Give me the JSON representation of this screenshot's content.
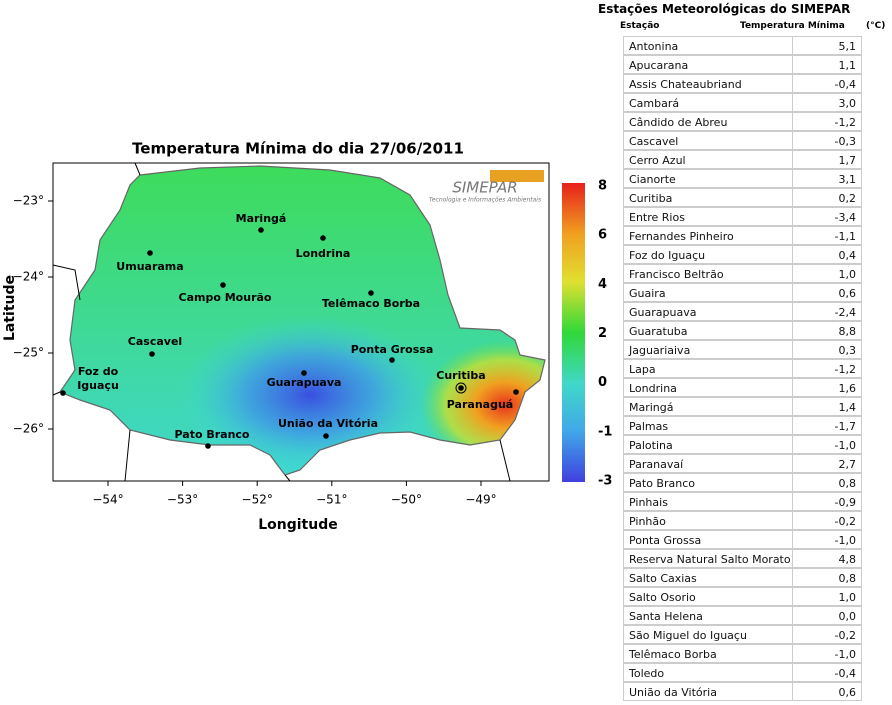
{
  "map": {
    "title": "Temperatura Mínima  do dia 27/06/2011",
    "xlabel": "Longitude",
    "ylabel": "Latitude",
    "xticks": [
      {
        "value": -54,
        "label": "−54°"
      },
      {
        "value": -53,
        "label": "−53°"
      },
      {
        "value": -52,
        "label": "−52°"
      },
      {
        "value": -51,
        "label": "−51°"
      },
      {
        "value": -50,
        "label": "−50°"
      },
      {
        "value": -49,
        "label": "−49°"
      }
    ],
    "yticks": [
      {
        "value": -23,
        "label": "−23°"
      },
      {
        "value": -24,
        "label": "−24°"
      },
      {
        "value": -25,
        "label": "−25°"
      },
      {
        "value": -26,
        "label": "−26°"
      }
    ],
    "colorbar_ticks": [
      8,
      6,
      4,
      2,
      0,
      -1,
      -3
    ],
    "logo": "SIMEPAR",
    "logo_subtitle": "Tecnologia e Informações Ambientais",
    "cities": [
      {
        "name": [
          "Maringá"
        ]
      },
      {
        "name": [
          "Londrina"
        ]
      },
      {
        "name": [
          "Umuarama"
        ]
      },
      {
        "name": [
          "Campo Mourão"
        ]
      },
      {
        "name": [
          "Telêmaco Borba"
        ]
      },
      {
        "name": [
          "Cascavel"
        ]
      },
      {
        "name": [
          "Ponta Grossa"
        ]
      },
      {
        "name": [
          "Foz do",
          "Iguaçu"
        ]
      },
      {
        "name": [
          "Guarapuava"
        ]
      },
      {
        "name": [
          "Curitiba"
        ]
      },
      {
        "name": [
          "Paranaguá"
        ]
      },
      {
        "name": [
          "Pato Branco"
        ]
      },
      {
        "name": [
          "União da Vitória"
        ]
      }
    ]
  },
  "table": {
    "title": "Estações   Meteorológicas do SIMEPAR",
    "columns": [
      "Estação",
      "Temperatura Mínima",
      "(°C)"
    ],
    "rows": [
      [
        "Antonina",
        "5,1"
      ],
      [
        "Apucarana",
        "1,1"
      ],
      [
        "Assis Chateaubriand",
        "-0,4"
      ],
      [
        "Cambará",
        "3,0"
      ],
      [
        "Cândido de Abreu",
        "-1,2"
      ],
      [
        "Cascavel",
        "-0,3"
      ],
      [
        "Cerro Azul",
        "1,7"
      ],
      [
        "Cianorte",
        "3,1"
      ],
      [
        "Curitiba",
        "0,2"
      ],
      [
        "Entre Rios",
        "-3,4"
      ],
      [
        "Fernandes Pinheiro",
        "-1,1"
      ],
      [
        "Foz do Iguaçu",
        "0,4"
      ],
      [
        "Francisco Beltrão",
        "1,0"
      ],
      [
        "Guaira",
        "0,6"
      ],
      [
        "Guarapuava",
        "-2,4"
      ],
      [
        "Guaratuba",
        "8,8"
      ],
      [
        "Jaguariaiva",
        "0,3"
      ],
      [
        "Lapa",
        "-1,2"
      ],
      [
        "Londrina",
        "1,6"
      ],
      [
        "Maringá",
        "1,4"
      ],
      [
        "Palmas",
        "-1,7"
      ],
      [
        "Palotina",
        "-1,0"
      ],
      [
        "Paranavaí",
        "2,7"
      ],
      [
        "Pato Branco",
        "0,8"
      ],
      [
        "Pinhais",
        "-0,9"
      ],
      [
        "Pinhão",
        "-0,2"
      ],
      [
        "Ponta Grossa",
        "-1,0"
      ],
      [
        "Reserva Natural Salto Morato",
        "4,8"
      ],
      [
        "Salto Caxias",
        "0,8"
      ],
      [
        "Salto Osorio",
        "1,0"
      ],
      [
        "Santa Helena",
        "0,0"
      ],
      [
        "São Miguel do Iguaçu",
        "-0,2"
      ],
      [
        "Telêmaco Borba",
        "-1,0"
      ],
      [
        "Toledo",
        "-0,4"
      ],
      [
        "União da Vitória",
        "0,6"
      ]
    ]
  }
}
